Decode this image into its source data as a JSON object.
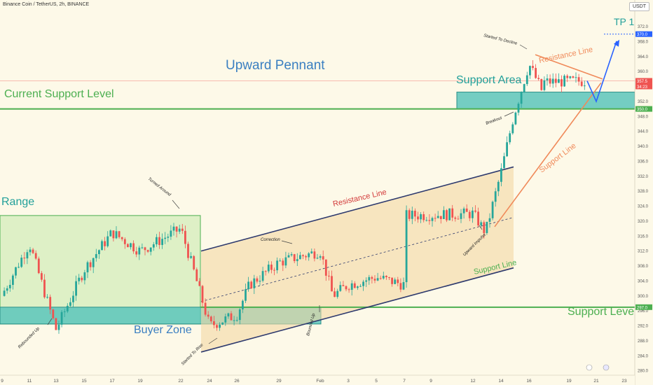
{
  "header": {
    "title": "Binance Coin / TetherUS, 2h, BINANCE",
    "currency_button": "USDT"
  },
  "labels": {
    "upward_pennant": "Upward Pennant",
    "current_support_level": "Current Support Level",
    "support_area": "Support Area",
    "tp1": "TP 1",
    "range": "Range",
    "buyer_zone": "Buyer Zone",
    "support_level": "Support Level",
    "resistance_line_channel": "Resistance Line",
    "support_line_channel": "Support Line",
    "resistance_line_pennant": "Resistance Line",
    "support_line_pennant": "Support Line"
  },
  "annotations": {
    "started_to_decline": "Started To Decline",
    "breakout": "Breakout",
    "turned_around": "Turned Around",
    "correction": "Correction",
    "upward_impulse": "Upward Impulse",
    "rebounded_up": "Rebounded Up",
    "started_to_rise": "Started To Rise",
    "bounced_up": "Bounced Up"
  },
  "price_tags": {
    "tp_level": "370.0",
    "current_price": "357.5",
    "countdown": "34:23",
    "support_area_level": "350.0",
    "support_level": "297.0"
  },
  "colors": {
    "background": "#fdf9e8",
    "bull": "#26a69a",
    "bear": "#ef5350",
    "range_fill": "#d8efc0",
    "zone_fill": "#5cc5bb",
    "support_green": "#4caf50",
    "label_blue": "#3a7fc1",
    "label_teal": "#22a09a",
    "pennant_orange": "#f08a5a",
    "channel_navy": "#2e3a6e",
    "tp_blue": "#2962ff"
  },
  "chart_data": {
    "type": "candlestick",
    "title": "Binance Coin / TetherUS, 2h, BINANCE",
    "ylim": [
      279,
      375
    ],
    "y_ticks": [
      280.0,
      284.0,
      288.0,
      292.0,
      296.0,
      300.0,
      304.0,
      308.0,
      312.0,
      316.0,
      320.0,
      324.0,
      328.0,
      332.0,
      336.0,
      340.0,
      344.0,
      348.0,
      352.0,
      356.0,
      360.0,
      364.0,
      368.0,
      372.0
    ],
    "x_ticks": [
      "9",
      "11",
      "13",
      "15",
      "17",
      "19",
      "22",
      "24",
      "26",
      "29",
      "Feb",
      "3",
      "5",
      "7",
      "9",
      "12",
      "14",
      "16",
      "19",
      "21",
      "23"
    ],
    "horizontal_levels": {
      "tp1": 370.0,
      "current_price": 357.5,
      "support_area": 350.0,
      "support_level": 297.0
    },
    "zones": {
      "support_area": [
        350.0,
        354.5
      ],
      "buyer_zone": [
        292.5,
        297.0
      ],
      "range": [
        292.5,
        321.5
      ]
    },
    "price_path": [
      {
        "x": "9",
        "close": 300
      },
      {
        "x": "11",
        "close": 314
      },
      {
        "x": "13",
        "close": 291
      },
      {
        "x": "15",
        "close": 307
      },
      {
        "x": "17",
        "close": 317
      },
      {
        "x": "19",
        "close": 312
      },
      {
        "x": "22",
        "close": 318
      },
      {
        "x": "22",
        "close": 307
      },
      {
        "x": "24",
        "close": 292
      },
      {
        "x": "26",
        "close": 295
      },
      {
        "x": "26",
        "close": 303
      },
      {
        "x": "29",
        "close": 309
      },
      {
        "x": "Feb",
        "close": 312
      },
      {
        "x": "Feb",
        "close": 300
      },
      {
        "x": "3",
        "close": 303
      },
      {
        "x": "5",
        "close": 305
      },
      {
        "x": "7",
        "close": 303
      },
      {
        "x": "9",
        "close": 318
      },
      {
        "x": "12",
        "close": 322
      },
      {
        "x": "12",
        "close": 317
      },
      {
        "x": "14",
        "close": 333
      },
      {
        "x": "14",
        "close": 348
      },
      {
        "x": "16",
        "close": 362
      },
      {
        "x": "16",
        "close": 355
      },
      {
        "x": "19",
        "close": 352
      },
      {
        "x": "19",
        "close": 355
      },
      {
        "x": "21",
        "close": 357.5
      }
    ],
    "projection": [
      {
        "x": "21",
        "y": 357.5
      },
      {
        "x": "21",
        "y": 352
      },
      {
        "x": "23",
        "y": 370
      }
    ]
  }
}
